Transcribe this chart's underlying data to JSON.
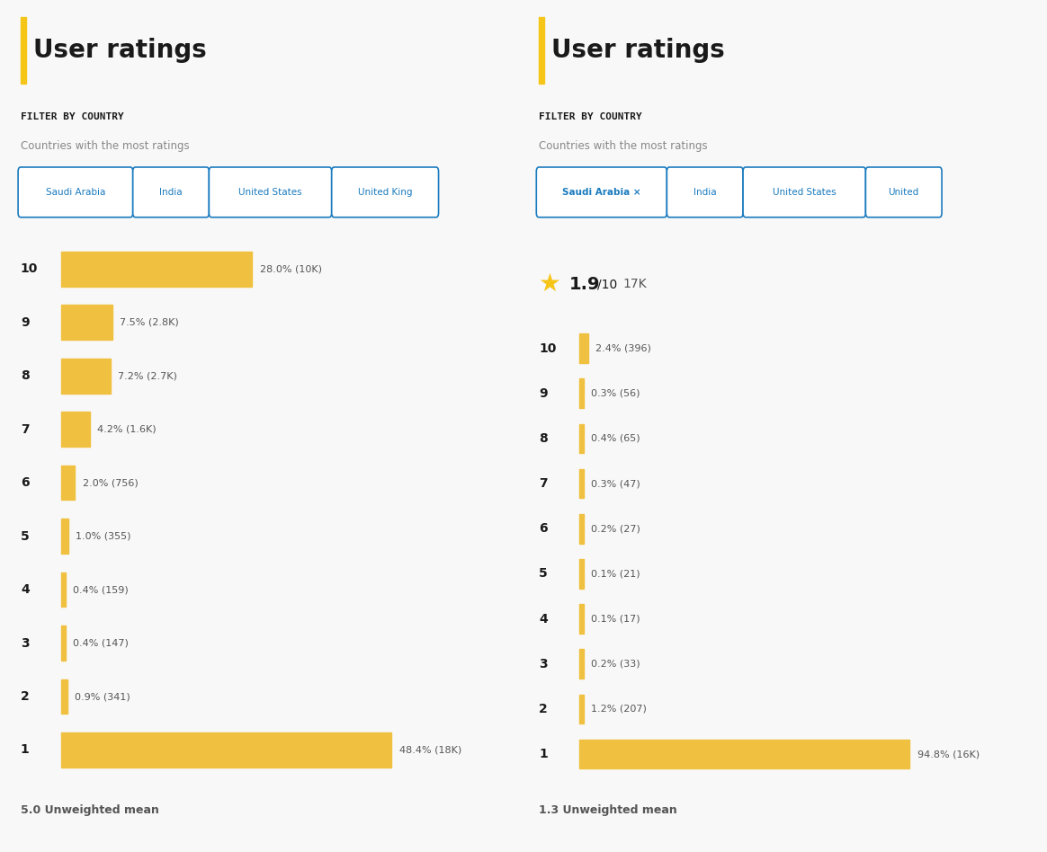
{
  "left_panel": {
    "title": "User ratings",
    "filter_label": "FILTER BY COUNTRY",
    "filter_sublabel": "Countries with the most ratings",
    "tabs": [
      "Saudi Arabia",
      "India",
      "United States",
      "United King"
    ],
    "active_tab": null,
    "ratings": [
      10,
      9,
      8,
      7,
      6,
      5,
      4,
      3,
      2,
      1
    ],
    "percentages": [
      28.0,
      7.5,
      7.2,
      4.2,
      2.0,
      1.0,
      0.4,
      0.4,
      0.9,
      48.4
    ],
    "labels": [
      "28.0% (10K)",
      "7.5% (2.8K)",
      "7.2% (2.7K)",
      "4.2% (1.6K)",
      "2.0% (756)",
      "1.0% (355)",
      "0.4% (159)",
      "0.4% (147)",
      "0.9% (341)",
      "48.4% (18K)"
    ],
    "unweighted_mean": "5.0 Unweighted mean",
    "bar_color": "#f0c040",
    "max_pct": 48.4
  },
  "right_panel": {
    "title": "User ratings",
    "filter_label": "FILTER BY COUNTRY",
    "filter_sublabel": "Countries with the most ratings",
    "tabs": [
      "Saudi Arabia ×",
      "India",
      "United States",
      "United"
    ],
    "active_tab": "Saudi Arabia ×",
    "star_rating": "1.9",
    "star_total": "10",
    "star_count": "17K",
    "ratings": [
      10,
      9,
      8,
      7,
      6,
      5,
      4,
      3,
      2,
      1
    ],
    "percentages": [
      2.4,
      0.3,
      0.4,
      0.3,
      0.2,
      0.1,
      0.1,
      0.2,
      1.2,
      94.8
    ],
    "labels": [
      "2.4% (396)",
      "0.3% (56)",
      "0.4% (65)",
      "0.3% (47)",
      "0.2% (27)",
      "0.1% (21)",
      "0.1% (17)",
      "0.2% (33)",
      "1.2% (207)",
      "94.8% (16K)"
    ],
    "unweighted_mean": "1.3 Unweighted mean",
    "bar_color": "#f0c040",
    "max_pct": 94.8
  },
  "bg_color": "#f8f8f8",
  "panel_bg": "#ffffff",
  "title_color": "#1a1a1a",
  "filter_label_color": "#1a1a1a",
  "filter_sublabel_color": "#888888",
  "tab_color": "#1a7bbf",
  "rating_label_color": "#1a1a1a",
  "bar_label_color": "#555555",
  "mean_color": "#555555",
  "accent_color": "#1a7bbf",
  "title_bar_color": "#f5c518"
}
